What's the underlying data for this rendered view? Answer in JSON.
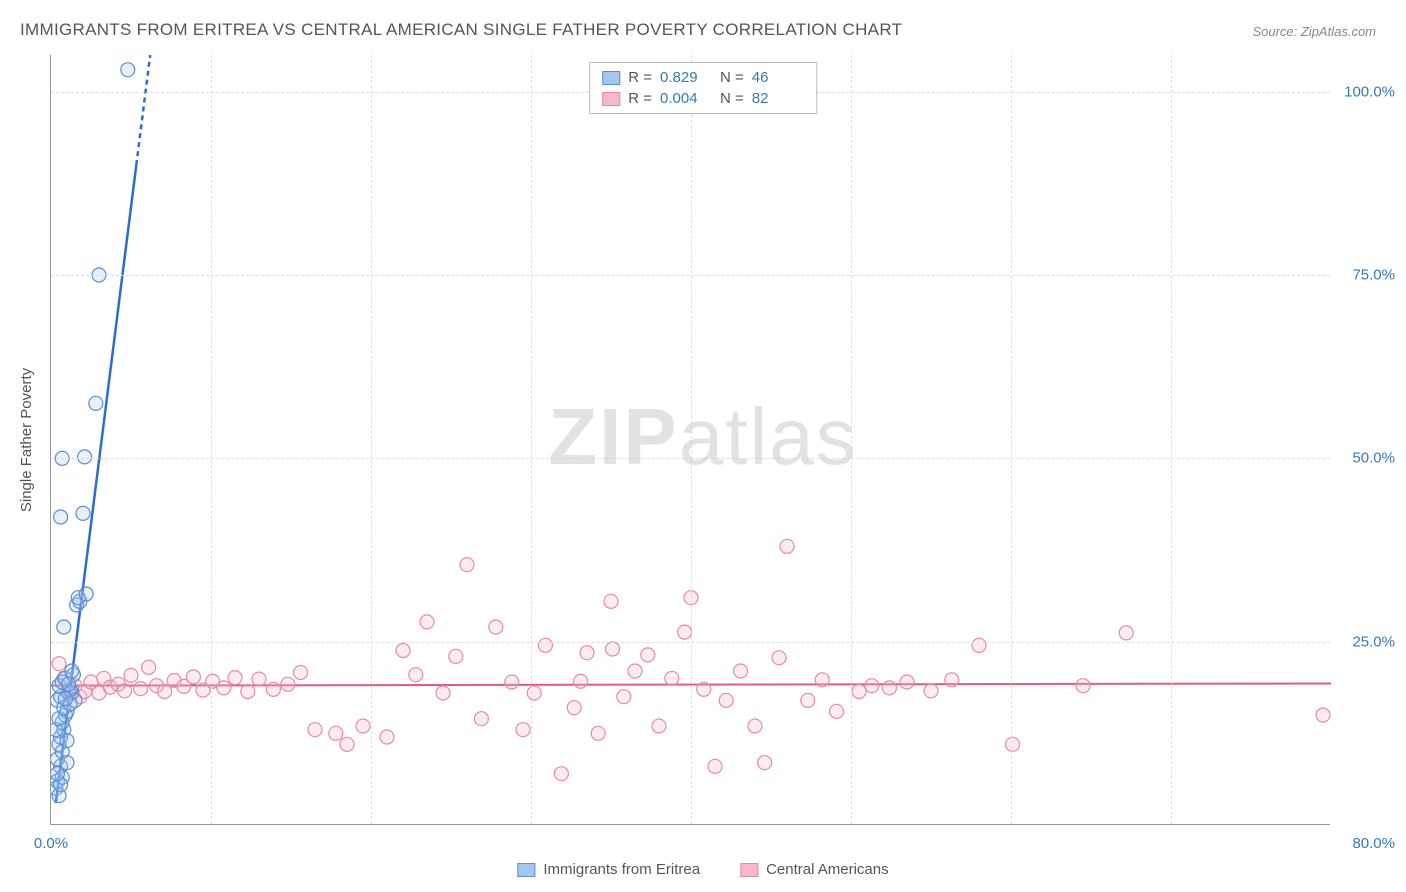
{
  "title": "IMMIGRANTS FROM ERITREA VS CENTRAL AMERICAN SINGLE FATHER POVERTY CORRELATION CHART",
  "source": "Source: ZipAtlas.com",
  "watermark": {
    "zip": "ZIP",
    "atlas": "atlas"
  },
  "y_axis_label": "Single Father Poverty",
  "chart": {
    "type": "scatter",
    "background_color": "#ffffff",
    "grid_color": "#dddddd",
    "xlim": [
      0,
      80
    ],
    "ylim": [
      0,
      105
    ],
    "xticks": [
      {
        "v": 0,
        "label": "0.0%"
      },
      {
        "v": 80,
        "label": "80.0%"
      }
    ],
    "yticks": [
      {
        "v": 25,
        "label": "25.0%"
      },
      {
        "v": 50,
        "label": "50.0%"
      },
      {
        "v": 75,
        "label": "75.0%"
      },
      {
        "v": 100,
        "label": "100.0%"
      }
    ],
    "x_vgrid": [
      10,
      20,
      30,
      40,
      50,
      60,
      70
    ],
    "marker_radius": 7,
    "marker_stroke_width": 1.2,
    "marker_fill_opacity": 0.28,
    "series": [
      {
        "name": "Immigrants from Eritrea",
        "color_stroke": "#5a8fd6",
        "color_fill": "#a7c6ec",
        "R": 0.829,
        "N": 46,
        "trend": {
          "x1": 0.3,
          "y1": 3,
          "x2": 6.2,
          "y2": 105,
          "dash_after_y": 90,
          "stroke": "#2b6cd4",
          "width": 2.5
        },
        "points": [
          [
            0.3,
            5
          ],
          [
            0.4,
            6
          ],
          [
            0.5,
            4
          ],
          [
            0.6,
            8
          ],
          [
            0.5,
            11
          ],
          [
            0.6,
            12
          ],
          [
            0.8,
            13
          ],
          [
            0.7,
            14
          ],
          [
            0.9,
            15
          ],
          [
            1.0,
            15.5
          ],
          [
            0.4,
            17
          ],
          [
            0.6,
            17.5
          ],
          [
            1.1,
            18
          ],
          [
            1.3,
            18
          ],
          [
            1.2,
            18.5
          ],
          [
            0.5,
            19
          ],
          [
            0.7,
            19.5
          ],
          [
            0.9,
            20
          ],
          [
            1.4,
            20.5
          ],
          [
            0.8,
            27
          ],
          [
            1.6,
            30
          ],
          [
            1.8,
            30.5
          ],
          [
            1.7,
            31
          ],
          [
            2.2,
            31.5
          ],
          [
            0.6,
            42
          ],
          [
            2.0,
            42.5
          ],
          [
            0.7,
            50
          ],
          [
            2.1,
            50.2
          ],
          [
            2.8,
            57.5
          ],
          [
            3.0,
            75
          ],
          [
            4.8,
            103
          ],
          [
            0.4,
            9
          ],
          [
            0.7,
            10
          ],
          [
            1.0,
            11.5
          ],
          [
            0.3,
            13
          ],
          [
            0.5,
            14.5
          ],
          [
            0.8,
            16
          ],
          [
            1.5,
            17
          ],
          [
            1.2,
            16.5
          ],
          [
            0.9,
            17.2
          ],
          [
            1.1,
            19.2
          ],
          [
            1.3,
            21
          ],
          [
            0.7,
            6.5
          ],
          [
            1.0,
            8.5
          ],
          [
            0.6,
            5.5
          ],
          [
            0.4,
            7
          ]
        ]
      },
      {
        "name": "Central Americans",
        "color_stroke": "#e88aa6",
        "color_fill": "#f5b7c9",
        "R": 0.004,
        "N": 82,
        "trend": {
          "x1": 0,
          "y1": 19,
          "x2": 80,
          "y2": 19.3,
          "stroke": "#e05a85",
          "width": 2
        },
        "points": [
          [
            0.5,
            22
          ],
          [
            0.8,
            20
          ],
          [
            1.2,
            18
          ],
          [
            1.5,
            19
          ],
          [
            1.8,
            17.5
          ],
          [
            2.1,
            18.2
          ],
          [
            2.5,
            19.5
          ],
          [
            3.0,
            18
          ],
          [
            3.3,
            20
          ],
          [
            3.7,
            18.8
          ],
          [
            4.2,
            19.2
          ],
          [
            4.6,
            18.3
          ],
          [
            5.0,
            20.4
          ],
          [
            5.6,
            18.6
          ],
          [
            6.1,
            21.5
          ],
          [
            6.6,
            19
          ],
          [
            7.1,
            18.2
          ],
          [
            7.7,
            19.7
          ],
          [
            8.3,
            18.9
          ],
          [
            8.9,
            20.2
          ],
          [
            9.5,
            18.4
          ],
          [
            10.1,
            19.6
          ],
          [
            10.8,
            18.7
          ],
          [
            11.5,
            20.1
          ],
          [
            12.3,
            18.2
          ],
          [
            13.0,
            19.9
          ],
          [
            13.9,
            18.5
          ],
          [
            14.8,
            19.2
          ],
          [
            15.6,
            20.8
          ],
          [
            16.5,
            13
          ],
          [
            17.8,
            12.5
          ],
          [
            18.5,
            11
          ],
          [
            19.5,
            13.5
          ],
          [
            21.0,
            12
          ],
          [
            22.0,
            23.8
          ],
          [
            22.8,
            20.5
          ],
          [
            23.5,
            27.7
          ],
          [
            24.5,
            18
          ],
          [
            25.3,
            23
          ],
          [
            26.0,
            35.5
          ],
          [
            26.9,
            14.5
          ],
          [
            27.8,
            27
          ],
          [
            28.8,
            19.5
          ],
          [
            29.5,
            13
          ],
          [
            30.2,
            18
          ],
          [
            30.9,
            24.5
          ],
          [
            31.9,
            7
          ],
          [
            32.7,
            16
          ],
          [
            33.1,
            19.6
          ],
          [
            33.5,
            23.5
          ],
          [
            34.2,
            12.5
          ],
          [
            35.0,
            30.5
          ],
          [
            35.1,
            24
          ],
          [
            35.8,
            17.5
          ],
          [
            36.5,
            21
          ],
          [
            37.3,
            23.2
          ],
          [
            38.0,
            13.5
          ],
          [
            38.8,
            20
          ],
          [
            39.6,
            26.3
          ],
          [
            40.0,
            31
          ],
          [
            40.8,
            18.5
          ],
          [
            41.5,
            8
          ],
          [
            42.2,
            17
          ],
          [
            43.1,
            21
          ],
          [
            44.0,
            13.5
          ],
          [
            44.6,
            8.5
          ],
          [
            45.5,
            22.8
          ],
          [
            46.0,
            38
          ],
          [
            47.3,
            17
          ],
          [
            48.2,
            19.8
          ],
          [
            49.1,
            15.5
          ],
          [
            50.5,
            18.2
          ],
          [
            51.3,
            19
          ],
          [
            52.4,
            18.7
          ],
          [
            53.5,
            19.5
          ],
          [
            55.0,
            18.3
          ],
          [
            56.3,
            19.8
          ],
          [
            58.0,
            24.5
          ],
          [
            60.1,
            11
          ],
          [
            64.5,
            19
          ],
          [
            67.2,
            26.2
          ],
          [
            79.5,
            15
          ]
        ]
      }
    ]
  },
  "legend_top": {
    "R_label": "R  =",
    "N_label": "N  ="
  },
  "legend_bottom_labels": [
    "Immigrants from Eritrea",
    "Central Americans"
  ]
}
